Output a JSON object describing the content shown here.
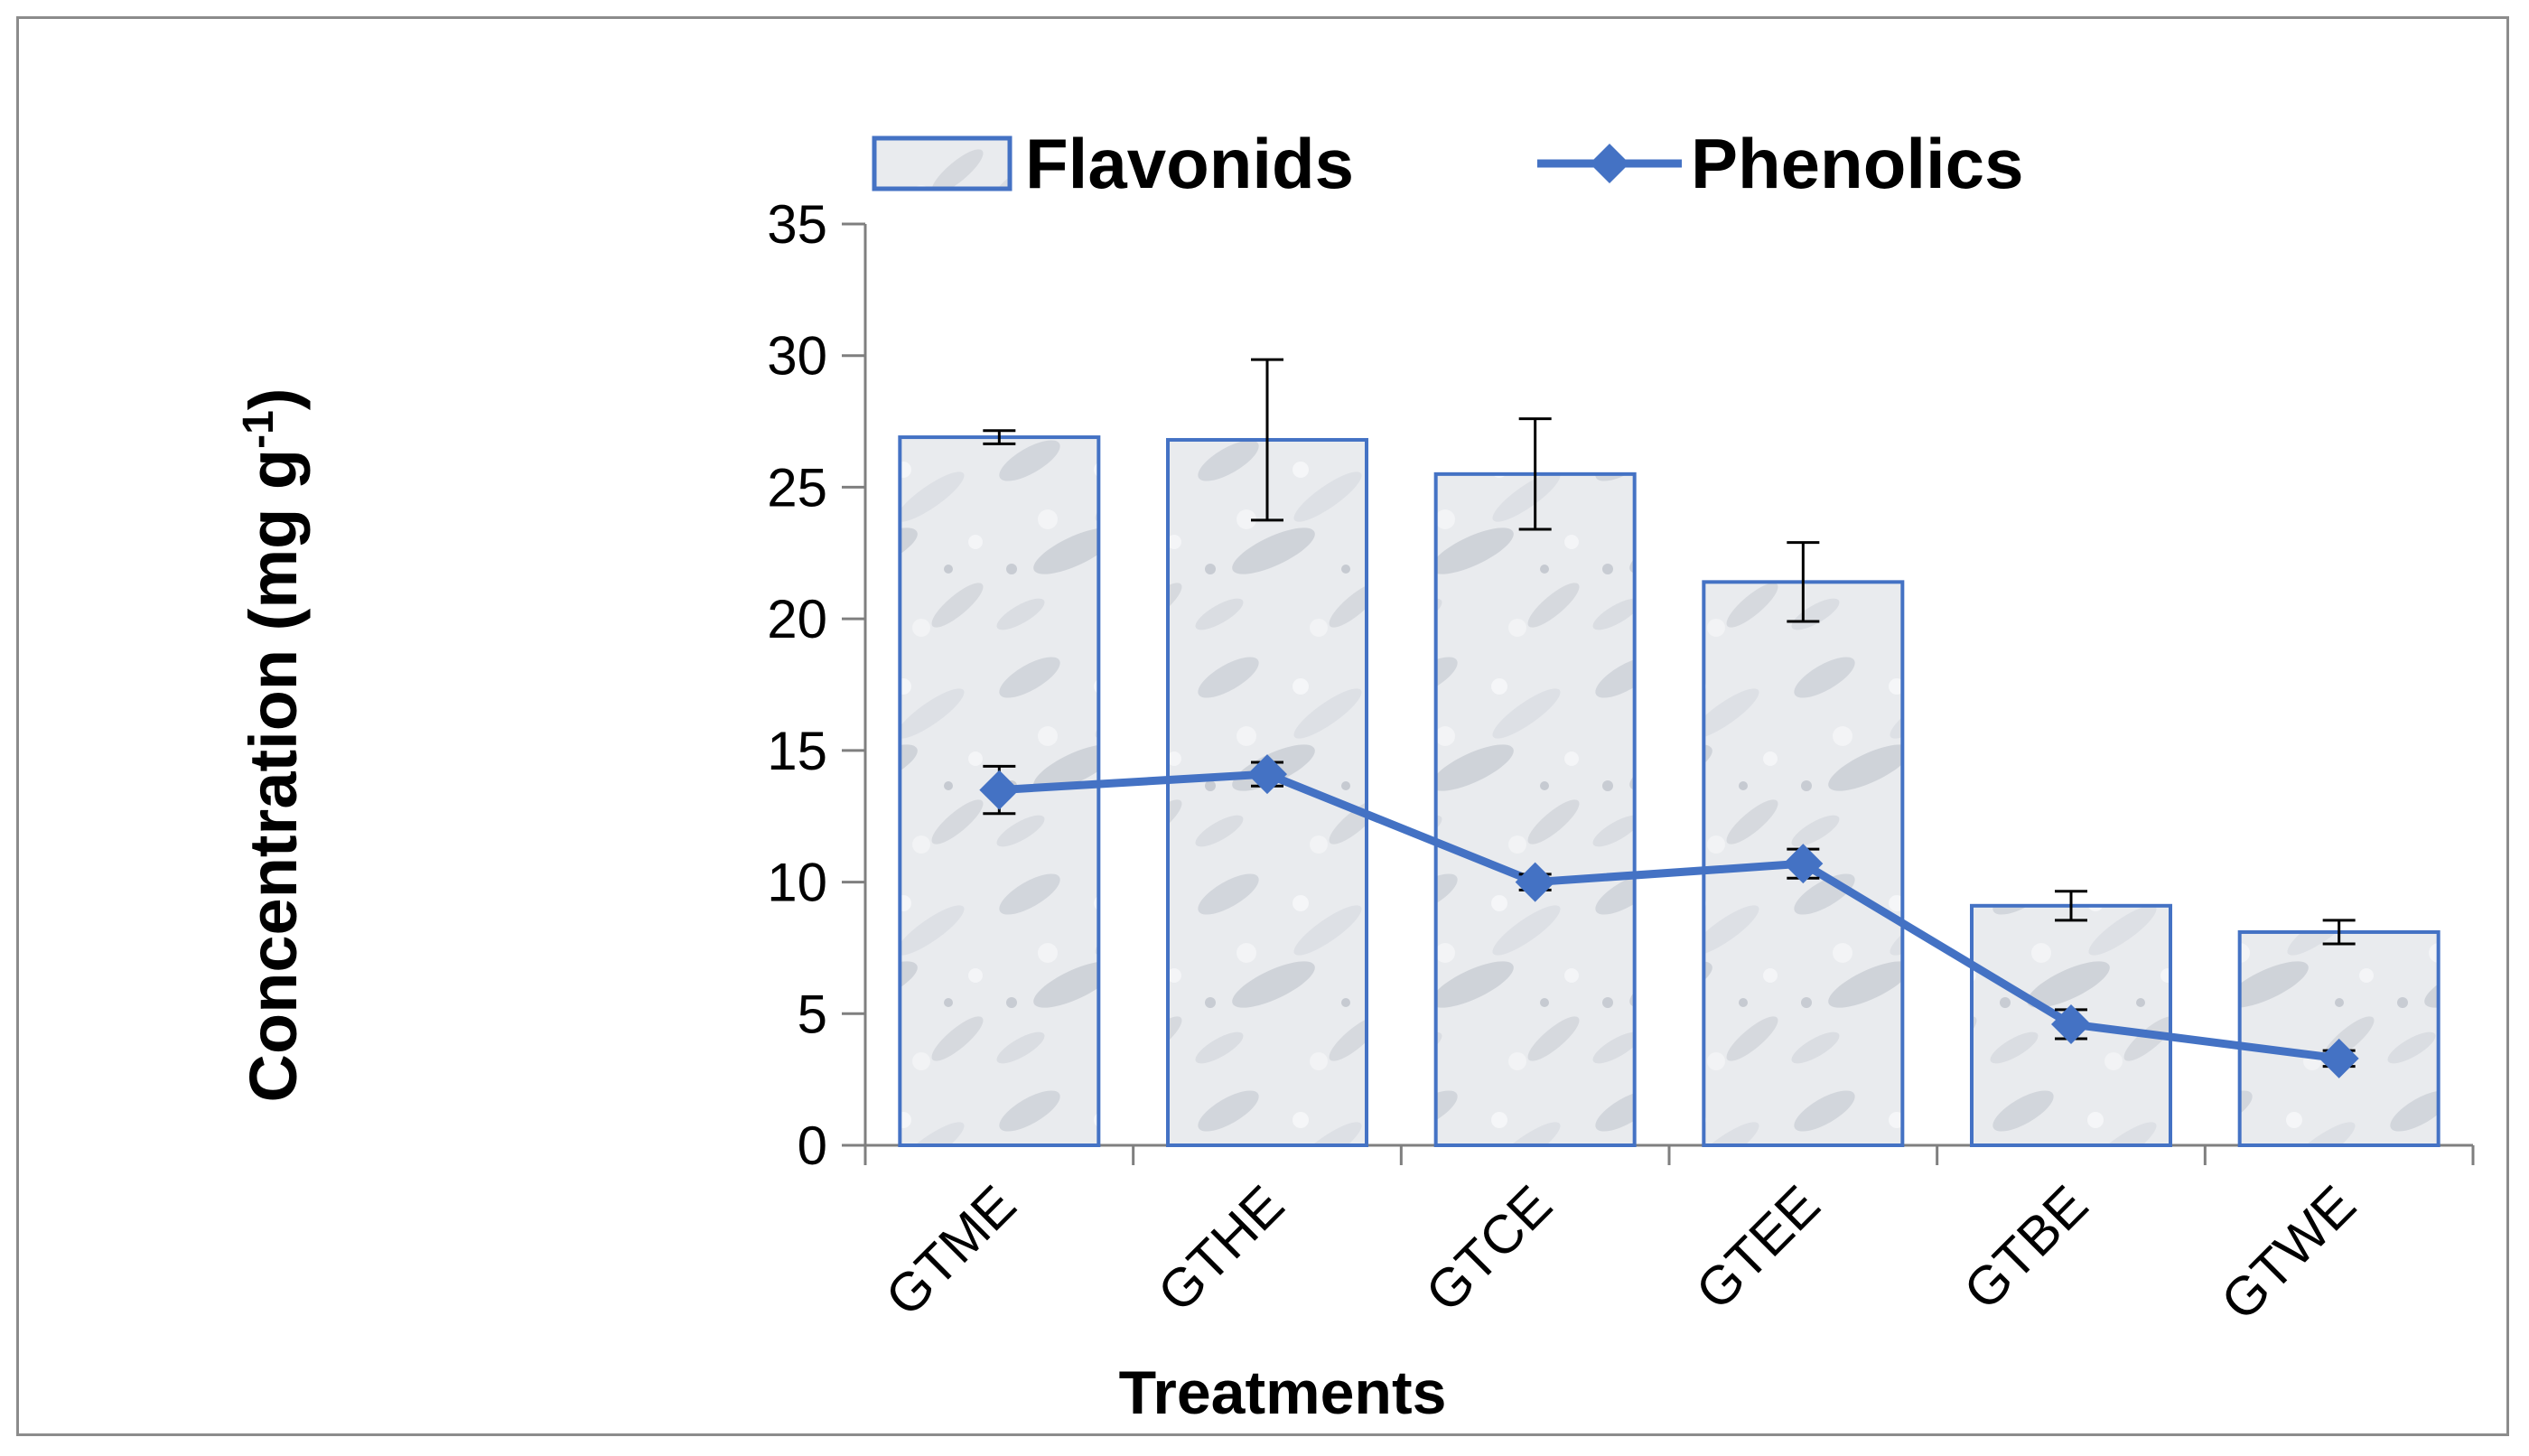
{
  "chart_data": {
    "type": "bar",
    "categories": [
      "GTME",
      "GTHE",
      "GTCE",
      "GTEE",
      "GTBE",
      "GTWE"
    ],
    "series": [
      {
        "name": "Flavonids",
        "kind": "bar",
        "values": [
          26.9,
          26.8,
          25.5,
          21.4,
          9.1,
          8.1
        ],
        "errors": [
          0.25,
          3.05,
          2.1,
          1.5,
          0.55,
          0.45
        ]
      },
      {
        "name": "Phenolics",
        "kind": "line",
        "values": [
          13.5,
          14.1,
          10.0,
          10.7,
          4.6,
          3.3
        ],
        "errors": [
          0.9,
          0.45,
          0.3,
          0.55,
          0.55,
          0.3
        ]
      }
    ],
    "title": "",
    "xlabel": "Treatments",
    "ylabel": "Concentration (mg g",
    "ylabel_sup": "-1",
    "ylabel_close": ")",
    "ylim": [
      0,
      35
    ],
    "yticks": [
      0,
      5,
      10,
      15,
      20,
      25,
      30,
      35
    ],
    "legend_position": "top",
    "colors": {
      "bar_stroke": "#4472c4",
      "bar_fill": "#e6e8ec",
      "line": "#4472c4",
      "axis": "#7f7f7f",
      "error": "#000000"
    }
  }
}
